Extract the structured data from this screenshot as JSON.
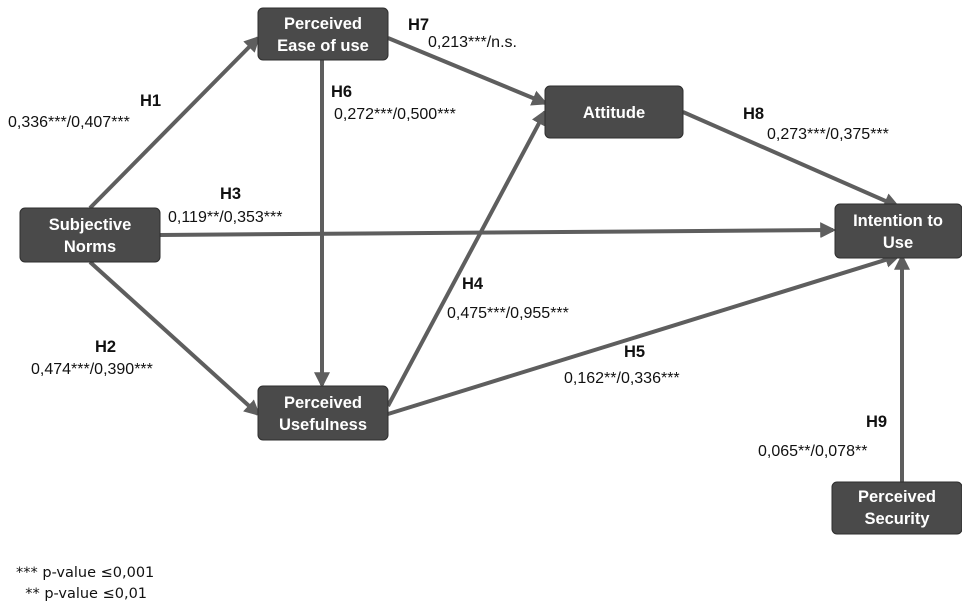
{
  "nodes": {
    "ease": [
      "Perceived",
      "Ease of use"
    ],
    "attitude": [
      "Attitude"
    ],
    "subjective": [
      "Subjective",
      "Norms"
    ],
    "intention": [
      "Intention to",
      "Use"
    ],
    "usefulness": [
      "Perceived",
      "Usefulness"
    ],
    "security": [
      "Perceived",
      "Security"
    ]
  },
  "hypotheses": {
    "H1": {
      "label": "H1",
      "coef": "0,336***/0,407***"
    },
    "H2": {
      "label": "H2",
      "coef": "0,474***/0,390***"
    },
    "H3": {
      "label": "H3",
      "coef": "0,119**/0,353***"
    },
    "H4": {
      "label": "H4",
      "coef": "0,475***/0,955***"
    },
    "H5": {
      "label": "H5",
      "coef": "0,162**/0,336***"
    },
    "H6": {
      "label": "H6",
      "coef": "0,272***/0,500***"
    },
    "H7": {
      "label": "H7",
      "coef": "0,213***/n.s."
    },
    "H8": {
      "label": "H8",
      "coef": "0,273***/0,375***"
    },
    "H9": {
      "label": "H9",
      "coef": "0,065**/0,078**"
    }
  },
  "legend": {
    "line1": "*** p-value ≤0,001",
    "line2": "  ** p-value ≤0,01"
  },
  "colors": {
    "node_fill": "#4a4a4a",
    "edge": "#5e5e5e",
    "text": "#111111"
  }
}
